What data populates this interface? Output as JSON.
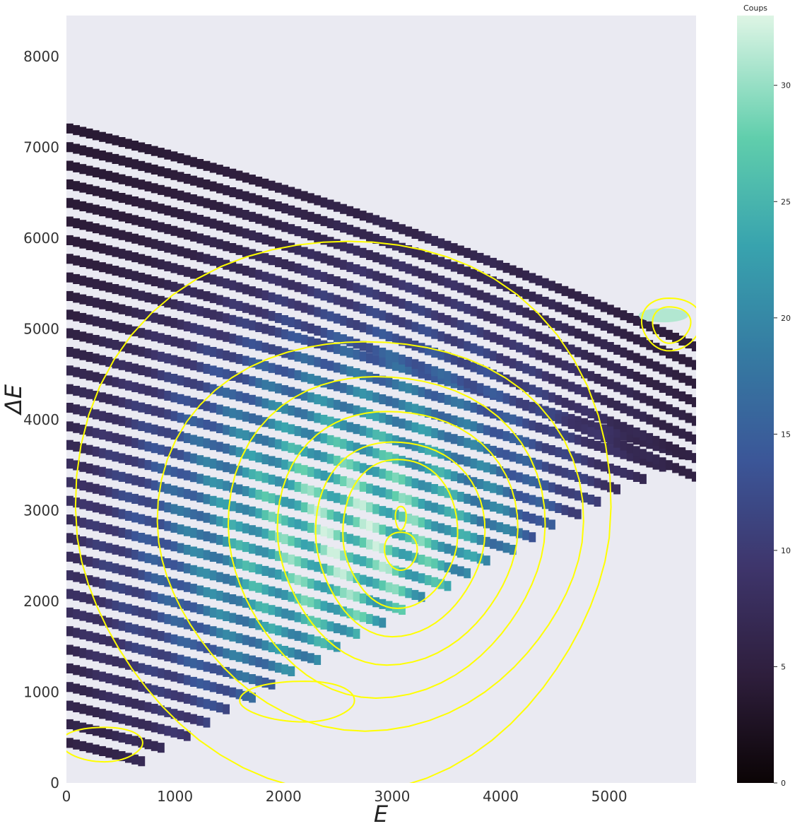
{
  "chart_data": {
    "type": "heatmap",
    "title": "",
    "xlabel": "E",
    "ylabel": "ΔE",
    "xlim": [
      0,
      5800
    ],
    "ylim": [
      0,
      8450
    ],
    "x_ticks": [
      0,
      1000,
      2000,
      3000,
      4000,
      5000
    ],
    "y_ticks": [
      0,
      1000,
      2000,
      3000,
      4000,
      5000,
      6000,
      7000,
      8000
    ],
    "grid": false,
    "background_color": "#eaeaf2",
    "colormap": "mako",
    "colormap_stops": [
      "#0b0405",
      "#2e1e3c",
      "#3e356b",
      "#3b5698",
      "#357ba2",
      "#38a3ae",
      "#60ceac",
      "#def5e5"
    ],
    "contour_color": "#ffff00",
    "colorbar": {
      "title": "Coups",
      "range": [
        0,
        33
      ],
      "ticks": [
        0,
        5,
        10,
        15,
        20,
        25,
        30
      ]
    },
    "bands": {
      "count": 34,
      "start_dE_at_E0": 450,
      "spacing_dE": 205,
      "slope_dE_per_E": -0.3,
      "E_extent_min": 700,
      "E_extent_max": 5800,
      "E_extent_growth": 200
    },
    "contour_levels": [
      {
        "center": [
          2600,
          2700
        ],
        "radius_E": [
          2500,
          2400
        ],
        "radius_dE": [
          3400,
          2700
        ]
      },
      {
        "center": [
          2750,
          2650
        ],
        "radius_E": [
          1900,
          2000
        ],
        "radius_dE": [
          2300,
          2000
        ]
      },
      {
        "center": [
          2850,
          2650
        ],
        "radius_E": [
          1350,
          1550
        ],
        "radius_dE": [
          1900,
          1650
        ]
      },
      {
        "center": [
          2950,
          2650
        ],
        "radius_E": [
          1000,
          1200
        ],
        "radius_dE": [
          1500,
          1300
        ]
      },
      {
        "center": [
          3000,
          2650
        ],
        "radius_E": [
          700,
          850
        ],
        "radius_dE": [
          1150,
          1000
        ]
      },
      {
        "center": [
          3050,
          2650
        ],
        "radius_E": [
          500,
          550
        ],
        "radius_dE": [
          950,
          700
        ]
      },
      {
        "center": [
          3080,
          2550
        ],
        "radius_E": [
          150,
          150
        ],
        "radius_dE": [
          220,
          200
        ]
      },
      {
        "center": [
          3080,
          2920
        ],
        "radius_E": [
          50,
          50
        ],
        "radius_dE": [
          130,
          130
        ]
      },
      {
        "center": [
          350,
          420
        ],
        "radius_E": [
          400,
          350
        ],
        "radius_dE": [
          200,
          180
        ]
      },
      {
        "center": [
          2200,
          880
        ],
        "radius_E": [
          600,
          450
        ],
        "radius_dE": [
          250,
          200
        ]
      },
      {
        "center": [
          5550,
          5050
        ],
        "radius_E": [
          250,
          300
        ],
        "radius_dE": [
          300,
          280
        ]
      },
      {
        "center": [
          5550,
          5050
        ],
        "radius_E": [
          150,
          200
        ],
        "radius_dE": [
          200,
          200
        ]
      }
    ],
    "hot_spot": {
      "E": 5500,
      "dE": 5150
    }
  }
}
